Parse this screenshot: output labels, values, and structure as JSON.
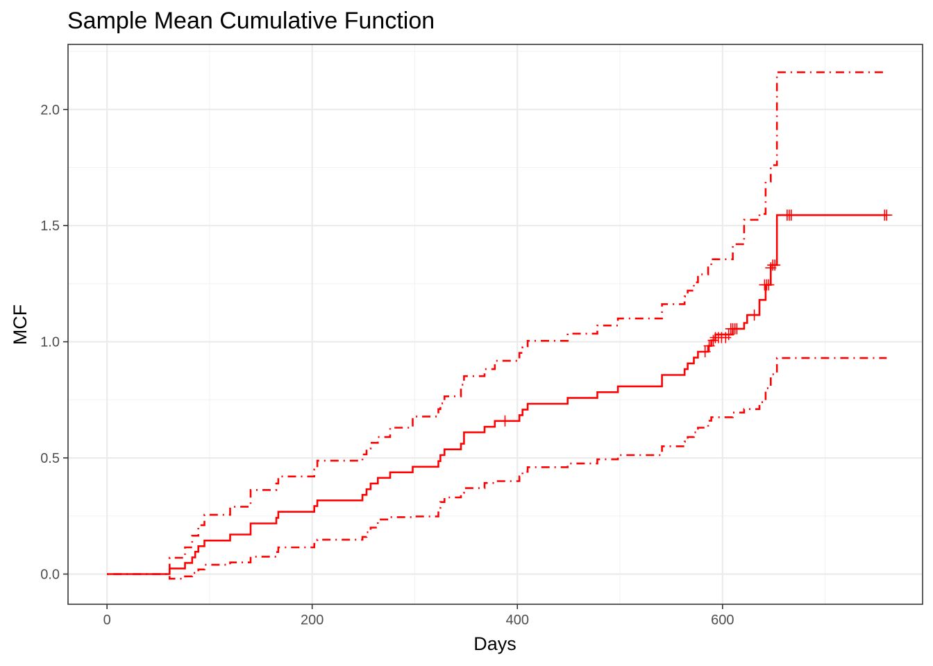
{
  "chart_data": {
    "type": "line",
    "title": "Sample Mean Cumulative Function",
    "xlabel": "Days",
    "ylabel": "MCF",
    "xlim": [
      -38,
      795
    ],
    "ylim": [
      -0.13,
      2.28
    ],
    "x_ticks": [
      0,
      200,
      400,
      600
    ],
    "y_ticks": [
      0.0,
      0.5,
      1.0,
      1.5,
      2.0
    ],
    "x_tick_labels": [
      "0",
      "200",
      "400",
      "600"
    ],
    "y_tick_labels": [
      "0.0",
      "0.5",
      "1.0",
      "1.5",
      "2.0"
    ],
    "grid": true,
    "legend": "none",
    "color": "#ff0000",
    "series": [
      {
        "role": "estimate",
        "style": "solid",
        "points": [
          [
            0,
            0
          ],
          [
            61,
            0.024
          ],
          [
            76,
            0.048
          ],
          [
            83,
            0.072
          ],
          [
            86,
            0.096
          ],
          [
            89,
            0.12
          ],
          [
            95,
            0.144
          ],
          [
            120,
            0.17
          ],
          [
            140,
            0.218
          ],
          [
            165,
            0.242
          ],
          [
            167,
            0.268
          ],
          [
            202,
            0.293
          ],
          [
            205,
            0.317
          ],
          [
            249,
            0.341
          ],
          [
            253,
            0.365
          ],
          [
            257,
            0.39
          ],
          [
            264,
            0.414
          ],
          [
            276,
            0.438
          ],
          [
            298,
            0.462
          ],
          [
            323,
            0.486
          ],
          [
            325,
            0.512
          ],
          [
            329,
            0.537
          ],
          [
            345,
            0.561
          ],
          [
            348,
            0.61
          ],
          [
            368,
            0.634
          ],
          [
            378,
            0.659
          ],
          [
            402,
            0.684
          ],
          [
            405,
            0.708
          ],
          [
            410,
            0.733
          ],
          [
            449,
            0.758
          ],
          [
            478,
            0.783
          ],
          [
            498,
            0.808
          ],
          [
            541,
            0.857
          ],
          [
            563,
            0.882
          ],
          [
            566,
            0.907
          ],
          [
            572,
            0.932
          ],
          [
            576,
            0.957
          ],
          [
            586,
            0.982
          ],
          [
            589,
            1.006
          ],
          [
            593,
            1.031
          ],
          [
            610,
            1.056
          ],
          [
            621,
            1.081
          ],
          [
            624,
            1.115
          ],
          [
            636,
            1.18
          ],
          [
            642,
            1.245
          ],
          [
            647,
            1.33
          ],
          [
            653,
            1.545
          ],
          [
            760,
            1.545
          ]
        ]
      },
      {
        "role": "upper",
        "style": "dotdash",
        "points": [
          [
            0,
            0
          ],
          [
            61,
            0.07
          ],
          [
            76,
            0.115
          ],
          [
            83,
            0.165
          ],
          [
            89,
            0.21
          ],
          [
            95,
            0.255
          ],
          [
            120,
            0.29
          ],
          [
            140,
            0.362
          ],
          [
            165,
            0.39
          ],
          [
            167,
            0.42
          ],
          [
            202,
            0.45
          ],
          [
            205,
            0.488
          ],
          [
            249,
            0.515
          ],
          [
            253,
            0.54
          ],
          [
            257,
            0.565
          ],
          [
            264,
            0.59
          ],
          [
            276,
            0.63
          ],
          [
            298,
            0.678
          ],
          [
            323,
            0.71
          ],
          [
            325,
            0.735
          ],
          [
            329,
            0.765
          ],
          [
            345,
            0.815
          ],
          [
            348,
            0.852
          ],
          [
            368,
            0.882
          ],
          [
            378,
            0.918
          ],
          [
            402,
            0.952
          ],
          [
            405,
            0.976
          ],
          [
            410,
            1.004
          ],
          [
            449,
            1.035
          ],
          [
            478,
            1.07
          ],
          [
            498,
            1.1
          ],
          [
            541,
            1.162
          ],
          [
            563,
            1.195
          ],
          [
            566,
            1.22
          ],
          [
            572,
            1.256
          ],
          [
            576,
            1.29
          ],
          [
            586,
            1.32
          ],
          [
            589,
            1.355
          ],
          [
            610,
            1.42
          ],
          [
            621,
            1.525
          ],
          [
            636,
            1.55
          ],
          [
            642,
            1.69
          ],
          [
            647,
            1.76
          ],
          [
            653,
            2.16
          ],
          [
            760,
            2.16
          ]
        ]
      },
      {
        "role": "lower",
        "style": "dotdash",
        "points": [
          [
            0,
            0
          ],
          [
            61,
            -0.02
          ],
          [
            76,
            -0.01
          ],
          [
            83,
            0.005
          ],
          [
            89,
            0.02
          ],
          [
            95,
            0.04
          ],
          [
            120,
            0.05
          ],
          [
            140,
            0.075
          ],
          [
            165,
            0.095
          ],
          [
            167,
            0.115
          ],
          [
            202,
            0.13
          ],
          [
            205,
            0.148
          ],
          [
            249,
            0.16
          ],
          [
            253,
            0.18
          ],
          [
            257,
            0.2
          ],
          [
            264,
            0.235
          ],
          [
            276,
            0.245
          ],
          [
            298,
            0.248
          ],
          [
            323,
            0.285
          ],
          [
            325,
            0.31
          ],
          [
            329,
            0.33
          ],
          [
            345,
            0.35
          ],
          [
            348,
            0.37
          ],
          [
            368,
            0.392
          ],
          [
            378,
            0.4
          ],
          [
            402,
            0.42
          ],
          [
            405,
            0.44
          ],
          [
            410,
            0.46
          ],
          [
            449,
            0.476
          ],
          [
            478,
            0.494
          ],
          [
            498,
            0.512
          ],
          [
            541,
            0.55
          ],
          [
            563,
            0.57
          ],
          [
            566,
            0.59
          ],
          [
            572,
            0.61
          ],
          [
            576,
            0.63
          ],
          [
            586,
            0.66
          ],
          [
            589,
            0.675
          ],
          [
            610,
            0.695
          ],
          [
            621,
            0.71
          ],
          [
            636,
            0.74
          ],
          [
            642,
            0.8
          ],
          [
            647,
            0.86
          ],
          [
            653,
            0.93
          ],
          [
            760,
            0.93
          ]
        ]
      }
    ],
    "censor_marks": [
      [
        388,
        0.659
      ],
      [
        583,
        0.957
      ],
      [
        587,
        0.982
      ],
      [
        591,
        1.006
      ],
      [
        593,
        1.018
      ],
      [
        596,
        1.018
      ],
      [
        599,
        1.018
      ],
      [
        603,
        1.018
      ],
      [
        606,
        1.031
      ],
      [
        608,
        1.056
      ],
      [
        610,
        1.056
      ],
      [
        612,
        1.056
      ],
      [
        614,
        1.056
      ],
      [
        631,
        1.115
      ],
      [
        641,
        1.245
      ],
      [
        643,
        1.245
      ],
      [
        645,
        1.245
      ],
      [
        647,
        1.318
      ],
      [
        649,
        1.33
      ],
      [
        651,
        1.33
      ],
      [
        663,
        1.545
      ],
      [
        665,
        1.545
      ],
      [
        667,
        1.545
      ],
      [
        758,
        1.545
      ],
      [
        760,
        1.545
      ]
    ]
  }
}
